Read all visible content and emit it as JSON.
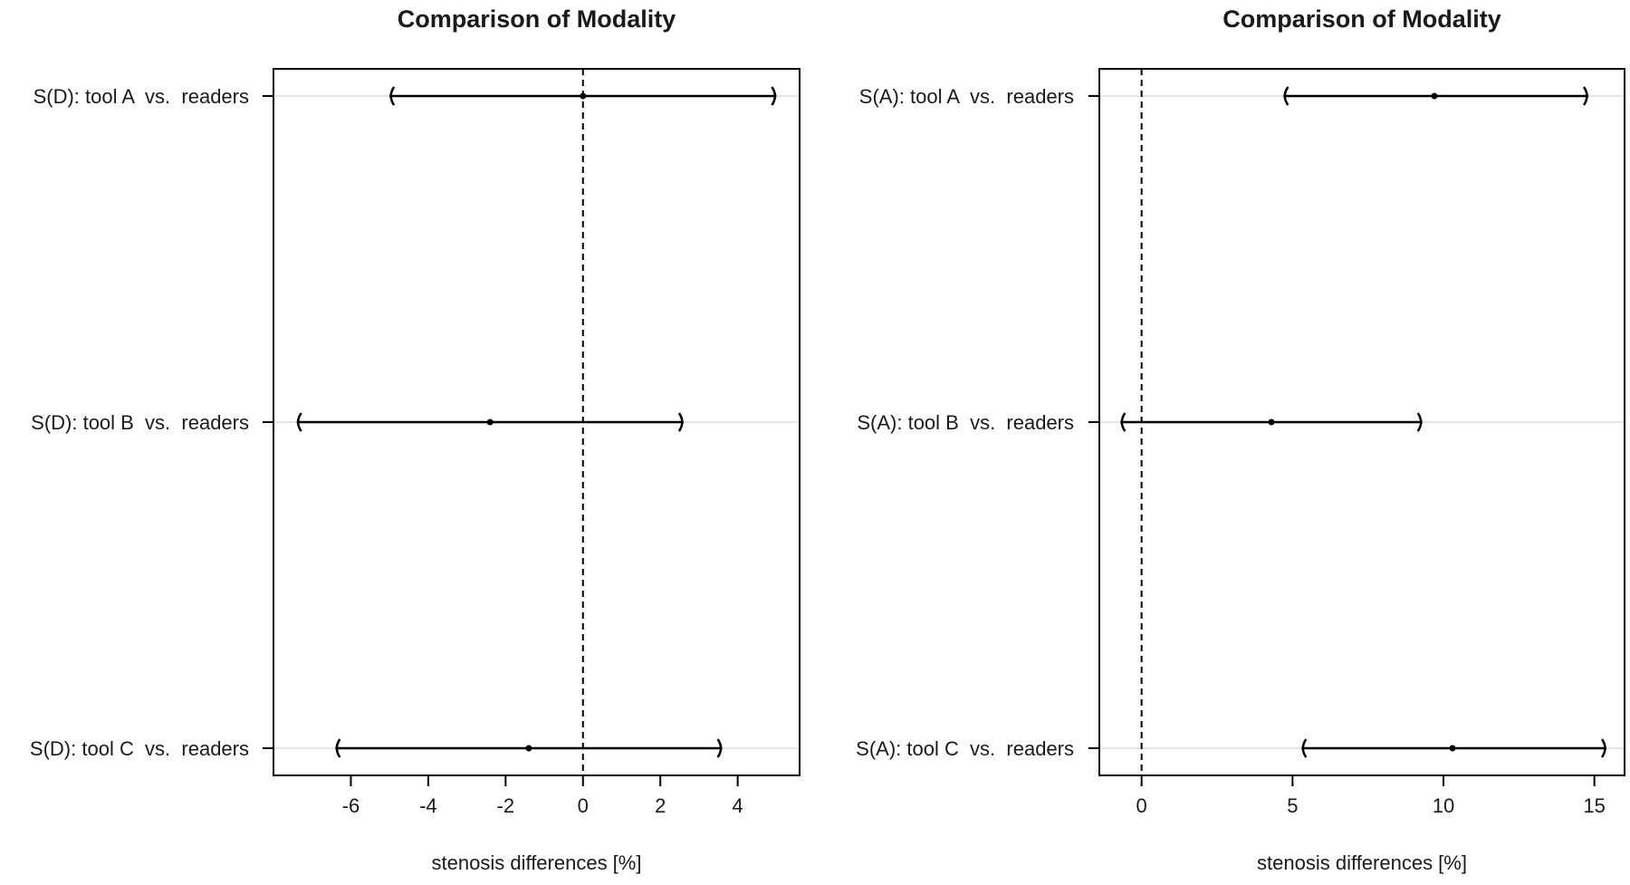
{
  "chart_data": [
    {
      "type": "interval",
      "title": "Comparison of Modality",
      "xlabel": "stenosis differences [%]",
      "ylabel": "",
      "xlim": [
        -8,
        5.6
      ],
      "xticks": [
        "-6",
        "-4",
        "-2",
        "0",
        "2",
        "4"
      ],
      "xtick_values": [
        -6,
        -4,
        -2,
        0,
        2,
        4
      ],
      "reference_line": 0,
      "grid": "horizontal at rows",
      "categories": [
        "S(D): tool A  vs.  readers",
        "S(D): tool B  vs.  readers",
        "S(D): tool C  vs.  readers"
      ],
      "estimates": [
        0.0,
        -2.4,
        -1.4
      ],
      "lower": [
        -5.0,
        -7.4,
        -6.4
      ],
      "upper": [
        5.0,
        2.6,
        3.6
      ]
    },
    {
      "type": "interval",
      "title": "Comparison of Modality",
      "xlabel": "stenosis differences [%]",
      "ylabel": "",
      "xlim": [
        -1.4,
        16.0
      ],
      "xticks": [
        "0",
        "5",
        "10",
        "15"
      ],
      "xtick_values": [
        0,
        5,
        10,
        15
      ],
      "reference_line": 0,
      "grid": "horizontal at rows",
      "categories": [
        "S(A): tool A  vs.  readers",
        "S(A): tool B  vs.  readers",
        "S(A): tool C  vs.  readers"
      ],
      "estimates": [
        9.7,
        4.3,
        10.3
      ],
      "lower": [
        4.7,
        -0.7,
        5.3
      ],
      "upper": [
        14.8,
        9.3,
        15.4
      ]
    }
  ]
}
